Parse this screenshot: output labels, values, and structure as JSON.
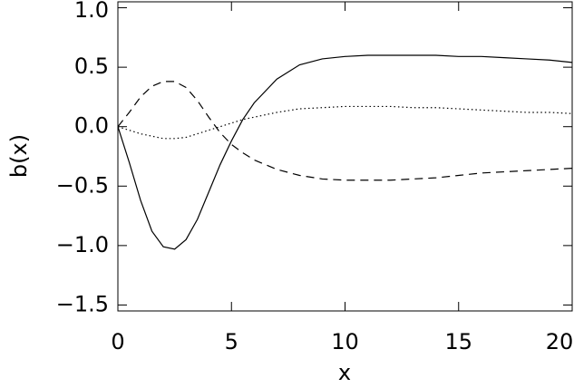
{
  "chart_data": {
    "type": "line",
    "x_label": "x",
    "y_label": "b(x)",
    "x": [
      0,
      0.5,
      1,
      1.5,
      2,
      2.5,
      3,
      3.5,
      4,
      4.5,
      5,
      5.5,
      6,
      7,
      8,
      9,
      10,
      11,
      12,
      13,
      14,
      15,
      16,
      17,
      18,
      19,
      20
    ],
    "series": [
      {
        "color": "#000000",
        "linestyle": "solid",
        "values": [
          0,
          -0.3,
          -0.62,
          -0.88,
          -1.01,
          -1.03,
          -0.95,
          -0.78,
          -0.55,
          -0.32,
          -0.12,
          0.06,
          0.2,
          0.4,
          0.52,
          0.57,
          0.59,
          0.6,
          0.6,
          0.6,
          0.6,
          0.59,
          0.59,
          0.58,
          0.57,
          0.56,
          0.54
        ]
      },
      {
        "color": "#000000",
        "linestyle": "dashed",
        "values": [
          0,
          0.12,
          0.25,
          0.34,
          0.38,
          0.38,
          0.33,
          0.22,
          0.08,
          -0.05,
          -0.15,
          -0.22,
          -0.28,
          -0.36,
          -0.41,
          -0.44,
          -0.45,
          -0.45,
          -0.45,
          -0.44,
          -0.43,
          -0.41,
          -0.39,
          -0.38,
          -0.37,
          -0.36,
          -0.35
        ]
      },
      {
        "color": "#000000",
        "linestyle": "dotted",
        "values": [
          0,
          -0.03,
          -0.06,
          -0.08,
          -0.1,
          -0.1,
          -0.09,
          -0.06,
          -0.03,
          0,
          0.03,
          0.06,
          0.08,
          0.12,
          0.15,
          0.16,
          0.17,
          0.17,
          0.17,
          0.16,
          0.16,
          0.15,
          0.14,
          0.13,
          0.12,
          0.12,
          0.11
        ]
      }
    ],
    "xlim": [
      0,
      20
    ],
    "xticks": [
      0,
      5,
      10,
      15,
      20
    ],
    "ylim": [
      -1.55,
      1.05
    ],
    "yticks": [
      {
        "value": -1.5,
        "label": "−1.5"
      },
      {
        "value": -1.0,
        "label": "−1.0"
      },
      {
        "value": -0.5,
        "label": "−0.5"
      },
      {
        "value": 0,
        "label": "0.0"
      },
      {
        "value": 0.5,
        "label": "0.5"
      },
      {
        "value": 1.0,
        "label": "1.0"
      }
    ],
    "grid": false
  }
}
